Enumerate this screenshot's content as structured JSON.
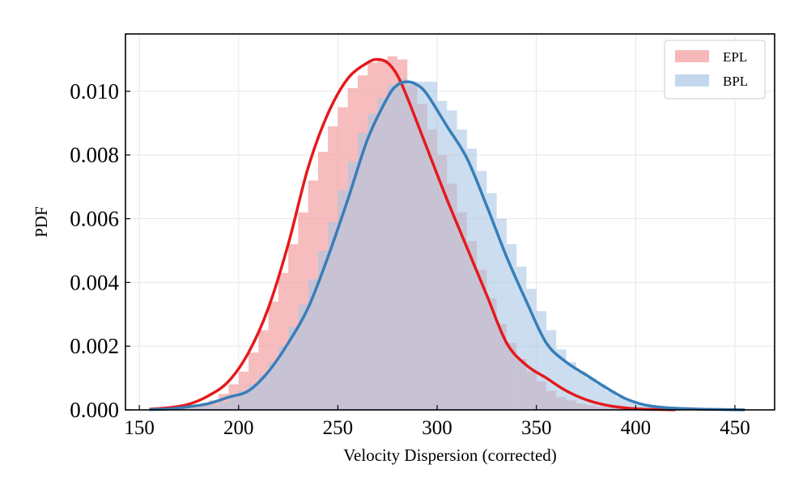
{
  "chart_data": {
    "type": "histogram+kde",
    "title": "",
    "xlabel": "Velocity Dispersion (corrected)",
    "ylabel": "PDF",
    "xlim": [
      143,
      470
    ],
    "ylim": [
      0,
      0.0118
    ],
    "xticks": [
      150,
      200,
      250,
      300,
      350,
      400,
      450
    ],
    "xtick_labels": [
      "150",
      "200",
      "250",
      "300",
      "350",
      "400",
      "450"
    ],
    "yticks": [
      0,
      0.002,
      0.004,
      0.006,
      0.008,
      0.01
    ],
    "ytick_labels": [
      "0.000",
      "0.002",
      "0.004",
      "0.006",
      "0.008",
      "0.010"
    ],
    "grid": true,
    "legend_position": "top-right",
    "series": [
      {
        "name": "EPL",
        "color": "#e41a1c",
        "bar_color": "#f4a6a7",
        "hist": {
          "edges": [
            155,
            160,
            165,
            170,
            175,
            180,
            185,
            190,
            195,
            200,
            205,
            210,
            215,
            220,
            225,
            230,
            235,
            240,
            245,
            250,
            255,
            260,
            265,
            270,
            275,
            280,
            285,
            290,
            295,
            300,
            305,
            310,
            315,
            320,
            325,
            330,
            335,
            340,
            345,
            350,
            355,
            360,
            365,
            370,
            375,
            380,
            385,
            390,
            395,
            400,
            405,
            410,
            415,
            420
          ],
          "values": [
            1e-05,
            2e-05,
            4e-05,
            7e-05,
            0.0001,
            0.00018,
            0.0003,
            0.0005,
            0.0008,
            0.0012,
            0.0018,
            0.0025,
            0.0034,
            0.0043,
            0.0052,
            0.0062,
            0.0072,
            0.0081,
            0.0089,
            0.0095,
            0.0101,
            0.0105,
            0.0109,
            0.011,
            0.0111,
            0.011,
            0.0102,
            0.0096,
            0.0088,
            0.008,
            0.0071,
            0.0062,
            0.0053,
            0.0044,
            0.0035,
            0.0027,
            0.0021,
            0.0016,
            0.0012,
            0.0009,
            0.0006,
            0.0004,
            0.0003,
            0.0002,
            0.00015,
            0.0001,
            7e-05,
            5e-05,
            3e-05,
            2e-05,
            1e-05,
            1e-05,
            5e-06
          ]
        },
        "kde": {
          "x": [
            155,
            165,
            175,
            185,
            195,
            205,
            215,
            225,
            235,
            245,
            255,
            265,
            270,
            275,
            280,
            285,
            295,
            305,
            315,
            325,
            335,
            345,
            355,
            365,
            375,
            385,
            395,
            405,
            415,
            420
          ],
          "y": [
            2e-05,
            7e-05,
            0.00018,
            0.00045,
            0.0009,
            0.0018,
            0.0032,
            0.0052,
            0.0076,
            0.0093,
            0.0104,
            0.0109,
            0.011,
            0.0109,
            0.0105,
            0.0098,
            0.0082,
            0.0066,
            0.0051,
            0.0036,
            0.0021,
            0.0014,
            0.001,
            0.0006,
            0.00032,
            0.00015,
            6e-05,
            2e-05,
            1e-05,
            0.0
          ]
        }
      },
      {
        "name": "BPL",
        "color": "#377eb8",
        "bar_color": "#a9c7e4",
        "hist": {
          "edges": [
            155,
            160,
            165,
            170,
            175,
            180,
            185,
            190,
            195,
            200,
            205,
            210,
            215,
            220,
            225,
            230,
            235,
            240,
            245,
            250,
            255,
            260,
            265,
            270,
            275,
            280,
            285,
            290,
            295,
            300,
            305,
            310,
            315,
            320,
            325,
            330,
            335,
            340,
            345,
            350,
            355,
            360,
            365,
            370,
            375,
            380,
            385,
            390,
            395,
            400,
            405,
            410,
            415,
            420,
            425,
            430,
            435,
            440,
            445,
            450,
            455,
            460
          ],
          "values": [
            1e-05,
            1e-05,
            2e-05,
            4e-05,
            6e-05,
            0.0001,
            0.00015,
            0.00025,
            0.0004,
            0.0006,
            0.0008,
            0.0011,
            0.0015,
            0.002,
            0.0026,
            0.0033,
            0.0041,
            0.005,
            0.0059,
            0.0069,
            0.0078,
            0.0087,
            0.0093,
            0.0098,
            0.0102,
            0.0104,
            0.0103,
            0.0103,
            0.0103,
            0.0097,
            0.0094,
            0.0088,
            0.0082,
            0.0075,
            0.0068,
            0.006,
            0.0052,
            0.0045,
            0.0038,
            0.0031,
            0.0025,
            0.0019,
            0.0015,
            0.0012,
            0.001,
            0.0008,
            0.0006,
            0.0004,
            0.0003,
            0.0002,
            0.00015,
            0.0001,
            8e-05,
            6e-05,
            4e-05,
            3e-05,
            2e-05,
            2e-05,
            1e-05,
            1e-05,
            1e-05
          ]
        },
        "kde": {
          "x": [
            155,
            165,
            175,
            185,
            195,
            205,
            215,
            225,
            235,
            245,
            255,
            265,
            275,
            280,
            285,
            290,
            295,
            305,
            315,
            325,
            335,
            345,
            355,
            365,
            375,
            385,
            395,
            405,
            415,
            425,
            435,
            445,
            455
          ],
          "y": [
            1e-05,
            3e-05,
            0.0001,
            0.0002,
            0.0004,
            0.0006,
            0.0012,
            0.0021,
            0.0032,
            0.0048,
            0.0066,
            0.0085,
            0.0098,
            0.0102,
            0.0103,
            0.0102,
            0.0099,
            0.0089,
            0.0079,
            0.0064,
            0.0048,
            0.0034,
            0.0021,
            0.0015,
            0.0011,
            0.0007,
            0.00035,
            0.00015,
            7e-05,
            4e-05,
            2e-05,
            1e-05,
            0.0
          ]
        }
      }
    ]
  }
}
